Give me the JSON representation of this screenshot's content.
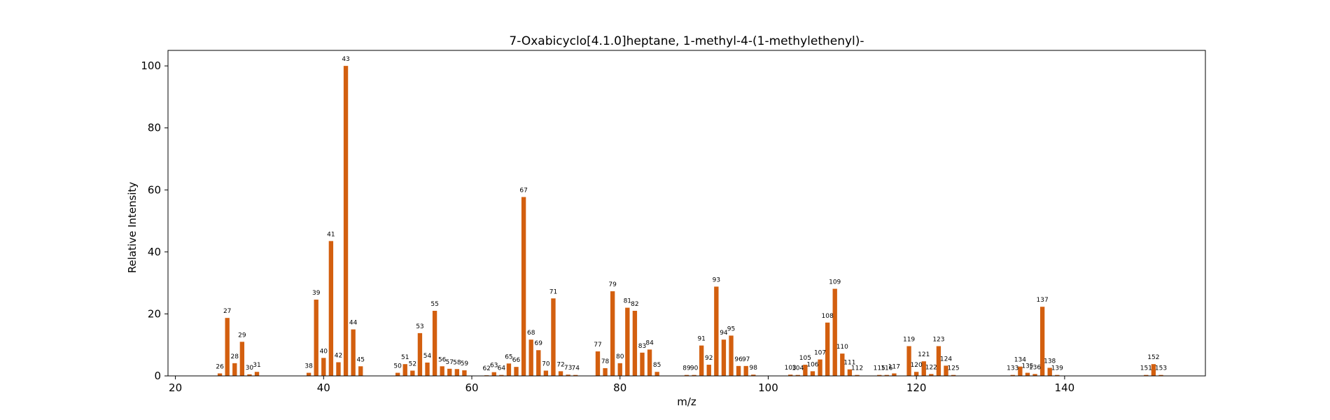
{
  "chart_data": {
    "type": "bar",
    "title": "7-Oxabicyclo[4.1.0]heptane, 1-methyl-4-(1-methylethenyl)-",
    "xlabel": "m/z",
    "ylabel": "Relative Intensity",
    "xlim": [
      19,
      159
    ],
    "ylim": [
      0,
      105
    ],
    "xticks": [
      20,
      40,
      60,
      80,
      100,
      120,
      140
    ],
    "yticks": [
      0,
      20,
      40,
      60,
      80,
      100
    ],
    "grid": false,
    "bar_color": "#d35f0f",
    "series": [
      {
        "x": [
          26,
          27,
          28,
          29,
          30,
          31,
          38,
          39,
          40,
          41,
          42,
          43,
          44,
          45,
          50,
          51,
          52,
          53,
          54,
          55,
          56,
          57,
          58,
          59,
          62,
          63,
          64,
          65,
          66,
          67,
          68,
          69,
          70,
          71,
          72,
          73,
          74,
          77,
          78,
          79,
          80,
          81,
          82,
          83,
          84,
          85,
          89,
          90,
          91,
          92,
          93,
          94,
          95,
          96,
          97,
          98,
          103,
          104,
          105,
          106,
          107,
          108,
          109,
          110,
          111,
          112,
          115,
          116,
          117,
          119,
          120,
          121,
          122,
          123,
          124,
          125,
          133,
          134,
          135,
          136,
          137,
          138,
          139,
          151,
          152,
          153
        ],
        "values": [
          0.8,
          18.7,
          4.1,
          11.0,
          0.5,
          1.3,
          1.0,
          24.6,
          5.8,
          43.5,
          4.4,
          100.0,
          15.0,
          3.1,
          1.0,
          3.8,
          1.7,
          13.8,
          4.3,
          21.0,
          3.1,
          2.3,
          2.2,
          1.8,
          0.2,
          1.2,
          0.3,
          4.0,
          2.9,
          57.7,
          11.7,
          8.3,
          1.7,
          25.0,
          1.5,
          0.4,
          0.3,
          7.9,
          2.5,
          27.3,
          4.1,
          22.0,
          21.0,
          7.5,
          8.5,
          1.3,
          0.3,
          0.3,
          9.8,
          3.6,
          28.8,
          11.7,
          13.0,
          3.2,
          3.2,
          0.4,
          0.4,
          0.3,
          3.6,
          1.5,
          5.3,
          17.2,
          28.1,
          7.2,
          2.1,
          0.3,
          0.3,
          0.3,
          0.8,
          9.6,
          1.3,
          4.7,
          0.6,
          9.6,
          3.3,
          0.3,
          0.3,
          3.0,
          1.0,
          0.6,
          22.3,
          2.6,
          0.3,
          0.3,
          3.8,
          0.3
        ]
      }
    ]
  }
}
